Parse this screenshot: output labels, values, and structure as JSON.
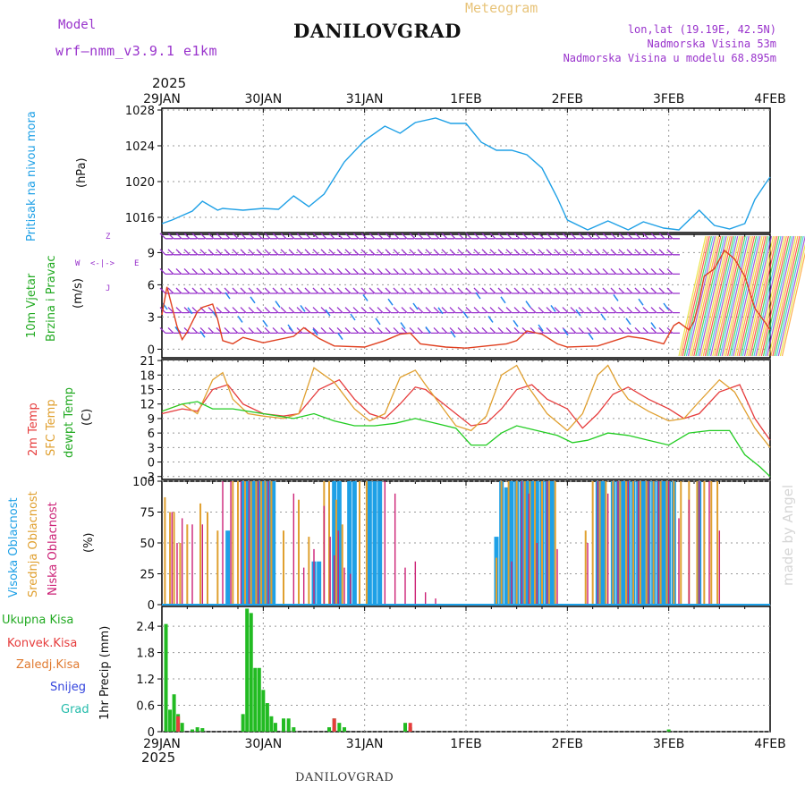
{
  "header": {
    "model_label": "Model",
    "model_name": "wrf—nmm_v3.9.1  e1km",
    "title": "DANILOVGRAD",
    "meteogram_label": "Meteogram",
    "lonlat": "lon,lat (19.19E, 42.5N)",
    "elevation": "Nadmorska Visina 53m",
    "model_elevation": "Nadmorska Visina u modelu 68.895m",
    "year_top": "2025",
    "year_bottom": "2025",
    "footer_title": "DANILOVGRAD",
    "credit": "made by Angel"
  },
  "colors": {
    "pressure": "#1ea0e6",
    "temp2m": "#e63c3c",
    "sfc": "#e0a030",
    "dewpt": "#22cc22",
    "wind_speed": "#e04020",
    "wind_barb": "#9933cc",
    "cloud_high": "#1ea0e6",
    "cloud_mid": "#e0a030",
    "cloud_low": "#cc2277",
    "precip_total": "#22bb22",
    "precip_conv": "#e63c3c",
    "snow": "#3344dd",
    "grid": "#999999",
    "wind_label": "#22aa22",
    "wind_units": "#9933cc"
  },
  "panel_labels": {
    "pressure": [
      "Pritisak na nivou mora",
      "(hPa)"
    ],
    "wind": [
      "10m Vjetar",
      "Brzina i Pravac",
      "(m/s)"
    ],
    "wind_rose": [
      "Z",
      "W",
      "E",
      "J"
    ],
    "temp": [
      "2m Temp",
      "SFC Temp",
      "dewpt Temp",
      "(C)"
    ],
    "cloud": [
      "Visoka Oblacnost",
      "Srednja Oblacnost",
      "Niska Oblacnost",
      "(%)"
    ],
    "precip_axis": "1hr Precip (mm)",
    "precip_legend": [
      "Ukupna Kisa",
      "Konvek.Kisa",
      "Zaledj.Kisa",
      "Snijeg",
      "Grad"
    ]
  },
  "chart_data": [
    {
      "type": "line",
      "title": "Pritisak na nivou mora",
      "ylabel": "(hPa)",
      "categories": [
        "29JAN",
        "30JAN",
        "31JAN",
        "1FEB",
        "2FEB",
        "3FEB",
        "4FEB"
      ],
      "yticks": [
        1016,
        1020,
        1024,
        1028
      ],
      "ylim": [
        1014.3,
        1028.2
      ],
      "grid": true,
      "series": [
        {
          "name": "Pritisak",
          "color": "#1ea0e6",
          "x": [
            0,
            0.1,
            0.3,
            0.4,
            0.55,
            0.6,
            0.8,
            1,
            1.15,
            1.3,
            1.45,
            1.6,
            1.8,
            2,
            2.2,
            2.35,
            2.5,
            2.7,
            2.85,
            3,
            3.15,
            3.3,
            3.45,
            3.6,
            3.75,
            3.9,
            4,
            4.2,
            4.4,
            4.6,
            4.75,
            4.95,
            5.1,
            5.3,
            5.45,
            5.6,
            5.75,
            5.85,
            5.95,
            6
          ],
          "y": [
            1015.3,
            1015.7,
            1016.7,
            1017.8,
            1016.8,
            1017.0,
            1016.8,
            1017.0,
            1016.9,
            1018.4,
            1017.2,
            1018.6,
            1022.2,
            1024.6,
            1026.2,
            1025.4,
            1026.6,
            1027.1,
            1026.5,
            1026.5,
            1024.4,
            1023.5,
            1023.5,
            1023.0,
            1021.5,
            1018.2,
            1015.7,
            1014.6,
            1015.6,
            1014.6,
            1015.5,
            1014.8,
            1014.6,
            1016.8,
            1015.1,
            1014.7,
            1015.3,
            1018.0,
            1019.7,
            1020.5
          ]
        }
      ]
    },
    {
      "type": "line",
      "title": "10m Vjetar Brzina i Pravac",
      "ylabel": "(m/s)",
      "yticks": [
        0,
        3,
        6,
        9
      ],
      "ylim": [
        -0.8,
        10.7
      ],
      "grid": true,
      "series": [
        {
          "name": "Brzina",
          "color": "#e04020",
          "x": [
            0,
            0.05,
            0.15,
            0.2,
            0.25,
            0.35,
            0.4,
            0.5,
            0.55,
            0.6,
            0.7,
            0.8,
            1,
            1.3,
            1.4,
            1.55,
            1.7,
            2,
            2.2,
            2.35,
            2.45,
            2.55,
            2.8,
            3,
            3.2,
            3.4,
            3.5,
            3.6,
            3.75,
            3.9,
            4,
            4.3,
            4.6,
            4.75,
            4.95,
            5.05,
            5.1,
            5.2,
            5.25,
            5.3,
            5.35,
            5.45,
            5.55,
            5.65,
            5.75,
            5.85,
            5.95,
            6
          ],
          "y": [
            3.2,
            5.8,
            2.1,
            0.9,
            1.6,
            3.5,
            3.9,
            4.2,
            2.8,
            0.8,
            0.5,
            1.1,
            0.6,
            1.2,
            2.0,
            1.0,
            0.3,
            0.2,
            0.8,
            1.4,
            1.5,
            0.5,
            0.2,
            0.1,
            0.3,
            0.5,
            0.8,
            1.7,
            1.4,
            0.5,
            0.2,
            0.3,
            1.2,
            1.0,
            0.5,
            2.2,
            2.5,
            1.8,
            2.6,
            4.5,
            6.8,
            7.5,
            9.2,
            8.4,
            6.8,
            3.8,
            2.5,
            1.8
          ]
        }
      ]
    },
    {
      "type": "line",
      "title": "2m Temp / SFC Temp / dewpt Temp",
      "ylabel": "(C)",
      "yticks": [
        -3,
        0,
        3,
        6,
        9,
        12,
        15,
        18,
        21
      ],
      "ylim": [
        -3.6,
        21.2
      ],
      "grid": true,
      "series": [
        {
          "name": "2m Temp",
          "color": "#e63c3c",
          "x": [
            0,
            0.2,
            0.35,
            0.5,
            0.65,
            0.8,
            1,
            1.2,
            1.35,
            1.55,
            1.75,
            1.9,
            2.05,
            2.2,
            2.35,
            2.5,
            2.6,
            2.9,
            3.05,
            3.2,
            3.35,
            3.5,
            3.65,
            3.8,
            4,
            4.15,
            4.3,
            4.45,
            4.6,
            4.8,
            5.0,
            5.15,
            5.3,
            5.5,
            5.7,
            5.85,
            6
          ],
          "y": [
            10,
            11,
            10.5,
            15,
            16,
            12,
            10,
            9.5,
            10,
            15,
            17,
            13,
            10,
            9,
            12,
            15.5,
            15,
            10,
            7.5,
            8,
            11,
            15,
            16,
            13,
            11,
            7,
            10,
            14,
            15.5,
            13,
            11,
            9,
            10,
            14.5,
            16,
            9,
            4.5
          ]
        },
        {
          "name": "SFC Temp",
          "color": "#e0a030",
          "x": [
            0,
            0.2,
            0.35,
            0.5,
            0.6,
            0.7,
            0.85,
            1,
            1.2,
            1.35,
            1.5,
            1.7,
            1.9,
            2.05,
            2.2,
            2.35,
            2.5,
            2.6,
            2.9,
            3.05,
            3.2,
            3.35,
            3.5,
            3.6,
            3.8,
            4,
            4.15,
            4.3,
            4.4,
            4.5,
            4.6,
            4.8,
            5.0,
            5.15,
            5.3,
            5.5,
            5.65,
            5.85,
            6
          ],
          "y": [
            10.5,
            12,
            10,
            17,
            18.5,
            13,
            10,
            9.5,
            9,
            10,
            19.5,
            16.5,
            11,
            8.5,
            10,
            17.5,
            19,
            16,
            7.5,
            6.5,
            9.5,
            18,
            20,
            16,
            10,
            6.5,
            10,
            18,
            20,
            16,
            13,
            10.5,
            8.5,
            9,
            12.5,
            17,
            14.5,
            7,
            3
          ]
        },
        {
          "name": "dewpt Temp",
          "color": "#22cc22",
          "x": [
            0,
            0.2,
            0.35,
            0.5,
            0.7,
            1,
            1.3,
            1.5,
            1.7,
            1.9,
            2.1,
            2.3,
            2.5,
            2.7,
            2.9,
            3.05,
            3.2,
            3.35,
            3.5,
            3.7,
            3.9,
            4.05,
            4.2,
            4.4,
            4.6,
            4.8,
            5.0,
            5.2,
            5.4,
            5.6,
            5.75,
            5.9,
            6
          ],
          "y": [
            10.5,
            12,
            12.5,
            11,
            11,
            10,
            9,
            10,
            8.5,
            7.5,
            7.5,
            8,
            9,
            8,
            7,
            3.5,
            3.5,
            6,
            7.5,
            6.5,
            5.5,
            4,
            4.5,
            6,
            5.5,
            4.5,
            3.5,
            6,
            6.5,
            6.5,
            1.5,
            -1,
            -3
          ]
        }
      ]
    },
    {
      "type": "bar",
      "title": "Visoka / Srednja / Niska Oblacnost",
      "ylabel": "(%)",
      "yticks": [
        0,
        25,
        50,
        75,
        100
      ],
      "ylim": [
        0,
        100
      ],
      "note": "cloud cover bars; solid high-cloud bands where overcast",
      "series": [
        {
          "name": "Visoka Oblacnost",
          "color": "#1ea0e6",
          "x": [
            0.65,
            0.8,
            0.85,
            0.9,
            0.95,
            1.0,
            1.05,
            1.1,
            1.5,
            1.55,
            1.7,
            1.75,
            1.85,
            1.9,
            2.05,
            2.1,
            2.15,
            3.3,
            3.35,
            3.4,
            3.45,
            3.5,
            3.55,
            3.6,
            3.65,
            3.7,
            3.75,
            3.8,
            3.85,
            4.3,
            4.35,
            4.45,
            4.5,
            4.55,
            4.6,
            4.65,
            4.7,
            4.75,
            4.8,
            4.85,
            4.9,
            4.95,
            5.0,
            5.05,
            5.3
          ],
          "values": [
            60,
            100,
            100,
            100,
            100,
            100,
            100,
            100,
            35,
            35,
            100,
            100,
            100,
            100,
            100,
            100,
            100,
            55,
            100,
            95,
            100,
            100,
            100,
            100,
            100,
            100,
            100,
            100,
            100,
            100,
            100,
            100,
            100,
            100,
            100,
            100,
            100,
            100,
            100,
            100,
            100,
            100,
            100,
            100,
            100
          ]
        },
        {
          "name": "Srednja Oblacnost",
          "color": "#e0a030",
          "x": [
            0.03,
            0.08,
            0.12,
            0.18,
            0.25,
            0.38,
            0.45,
            0.55,
            0.7,
            0.75,
            0.82,
            0.88,
            0.93,
            0.98,
            1.02,
            1.08,
            1.2,
            1.35,
            1.45,
            1.6,
            1.65,
            1.72,
            1.78,
            1.95,
            2.02,
            3.3,
            3.35,
            3.42,
            3.5,
            3.58,
            3.63,
            3.68,
            3.75,
            3.82,
            3.88,
            4.18,
            4.25,
            4.32,
            4.38,
            4.45,
            4.52,
            4.58,
            4.65,
            4.72,
            4.78,
            4.85,
            4.92,
            4.98,
            5.05,
            5.12,
            5.2,
            5.28,
            5.35,
            5.42,
            5.48
          ],
          "values": [
            87,
            75,
            75,
            50,
            65,
            82,
            75,
            60,
            100,
            100,
            100,
            100,
            100,
            100,
            100,
            100,
            60,
            85,
            55,
            100,
            100,
            85,
            65,
            100,
            100,
            38,
            100,
            100,
            100,
            100,
            100,
            100,
            100,
            100,
            100,
            60,
            100,
            100,
            100,
            100,
            100,
            100,
            100,
            100,
            100,
            100,
            100,
            100,
            100,
            100,
            100,
            100,
            100,
            100,
            100
          ]
        },
        {
          "name": "Niska Oblacnost",
          "color": "#cc2277",
          "x": [
            0.1,
            0.15,
            0.2,
            0.3,
            0.4,
            0.5,
            0.6,
            0.68,
            0.78,
            0.86,
            0.95,
            1.05,
            1.3,
            1.4,
            1.5,
            1.6,
            1.66,
            1.7,
            1.74,
            1.8,
            1.86,
            2.2,
            2.3,
            2.4,
            2.5,
            2.6,
            2.7,
            3.45,
            3.55,
            3.62,
            3.7,
            3.8,
            3.9,
            4.2,
            4.3,
            4.4,
            4.5,
            4.6,
            4.7,
            4.8,
            4.9,
            5.0,
            5.1,
            5.2,
            5.3,
            5.4,
            5.5
          ],
          "values": [
            75,
            50,
            70,
            65,
            65,
            0,
            100,
            100,
            100,
            100,
            100,
            100,
            90,
            30,
            45,
            80,
            55,
            40,
            60,
            30,
            25,
            100,
            90,
            30,
            35,
            10,
            5,
            35,
            100,
            90,
            50,
            100,
            45,
            50,
            100,
            90,
            100,
            100,
            100,
            100,
            100,
            100,
            70,
            85,
            100,
            100,
            60
          ]
        }
      ]
    },
    {
      "type": "bar",
      "title": "1hr Precip",
      "ylabel": "1hr Precip (mm)",
      "yticks": [
        0,
        0.6,
        1.2,
        1.8,
        2.4
      ],
      "ylim": [
        0,
        2.85
      ],
      "series": [
        {
          "name": "Ukupna Kisa",
          "color": "#22bb22",
          "x": [
            0.04,
            0.08,
            0.12,
            0.16,
            0.2,
            0.3,
            0.35,
            0.4,
            0.8,
            0.84,
            0.88,
            0.92,
            0.96,
            1.0,
            1.04,
            1.08,
            1.12,
            1.2,
            1.25,
            1.3,
            1.65,
            1.7,
            1.75,
            1.8,
            2.4,
            2.45,
            5.0
          ],
          "values": [
            2.45,
            0.5,
            0.85,
            0.4,
            0.2,
            0.05,
            0.1,
            0.08,
            0.4,
            2.8,
            2.7,
            1.45,
            1.45,
            0.95,
            0.65,
            0.35,
            0.2,
            0.3,
            0.3,
            0.1,
            0.1,
            0.3,
            0.2,
            0.1,
            0.2,
            0.1,
            0.05
          ]
        },
        {
          "name": "Konvek.Kisa",
          "color": "#e63c3c",
          "x": [
            0.16,
            1.7,
            2.45
          ],
          "values": [
            0.35,
            0.3,
            0.2
          ]
        }
      ]
    }
  ]
}
